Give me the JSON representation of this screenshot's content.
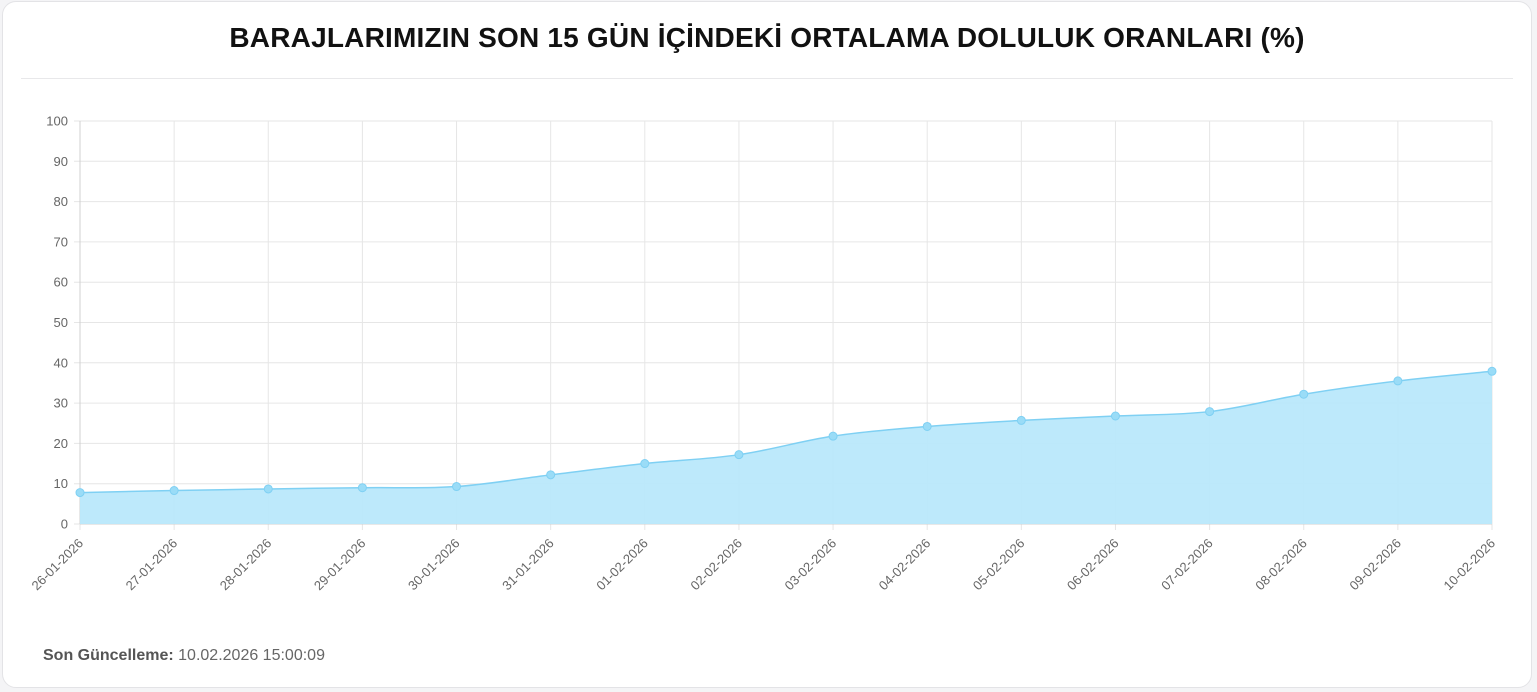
{
  "header": {
    "title": "BARAJLARIMIZIN SON 15 GÜN İÇİNDEKİ ORTALAMA DOLULUK ORANLARI (%)"
  },
  "footer": {
    "label": "Son Güncelleme:",
    "value": "10.02.2026 15:00:09"
  },
  "colors": {
    "fill": "#b9e8fb",
    "line": "#7fd0f3",
    "point": "#9adcf7",
    "grid": "#e6e6e6"
  },
  "chart_data": {
    "type": "area",
    "title": "BARAJLARIMIZIN SON 15 GÜN İÇİNDEKİ ORTALAMA DOLULUK ORANLARI (%)",
    "xlabel": "",
    "ylabel": "",
    "ylim": [
      0,
      100
    ],
    "yticks": [
      0,
      10,
      20,
      30,
      40,
      50,
      60,
      70,
      80,
      90,
      100
    ],
    "grid": true,
    "legend": "none",
    "categories": [
      "26-01-2026",
      "27-01-2026",
      "28-01-2026",
      "29-01-2026",
      "30-01-2026",
      "31-01-2026",
      "01-02-2026",
      "02-02-2026",
      "03-02-2026",
      "04-02-2026",
      "05-02-2026",
      "06-02-2026",
      "07-02-2026",
      "08-02-2026",
      "09-02-2026",
      "10-02-2026"
    ],
    "series": [
      {
        "values": [
          7.8,
          8.3,
          8.7,
          9.0,
          9.3,
          12.2,
          15.0,
          17.2,
          21.8,
          24.2,
          25.7,
          26.8,
          27.9,
          32.2,
          35.5,
          37.9
        ]
      }
    ]
  }
}
